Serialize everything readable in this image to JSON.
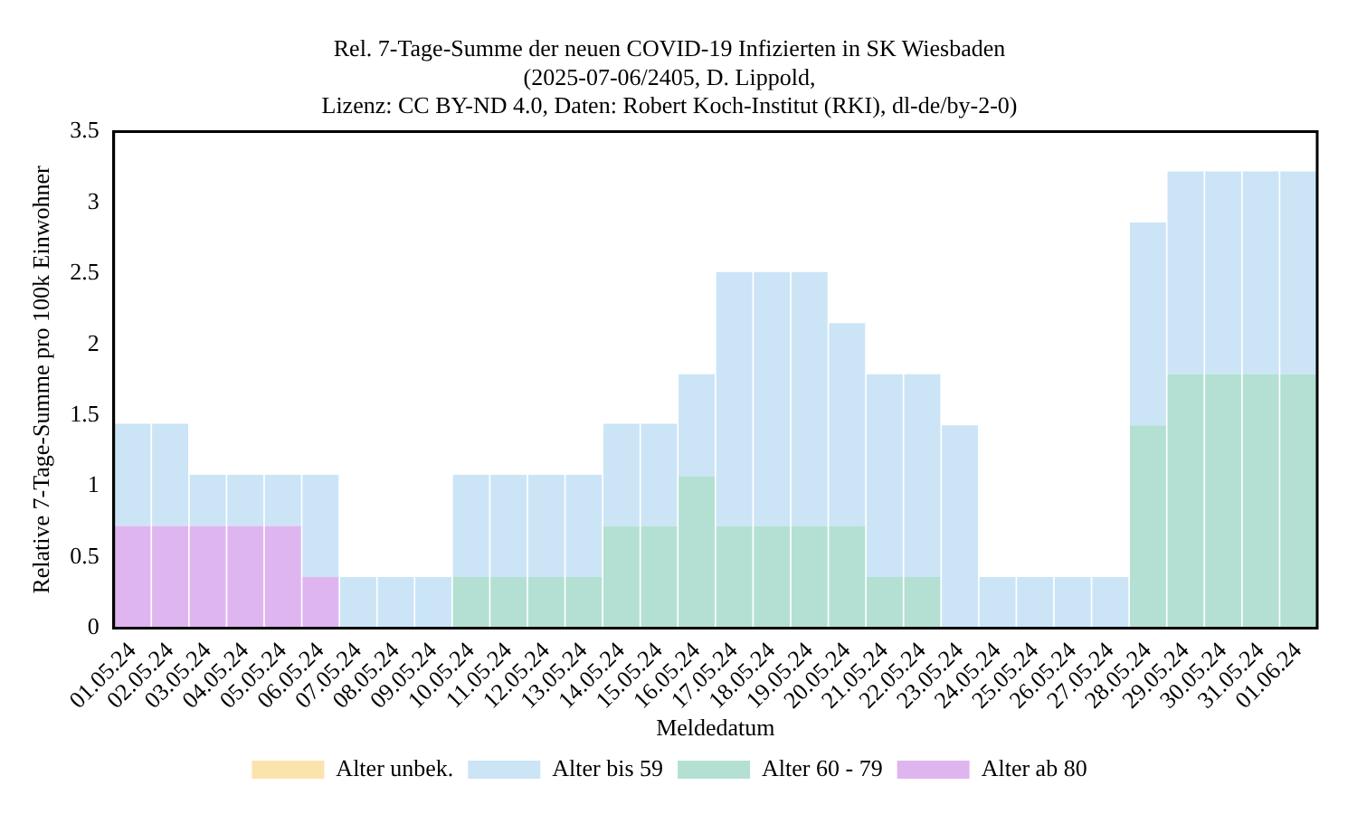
{
  "chart_data": {
    "type": "bar",
    "title": "Rel. 7-Tage-Summe der neuen COVID-19 Infizierten in SK Wiesbaden",
    "subtitle": "(2025-07-06/2405, D. Lippold,\nLizenz: CC BY-ND 4.0, Daten: Robert Koch-Institut (RKI), dl-de/by-2-0)",
    "xlabel": "Meldedatum",
    "ylabel": "Relative 7-Tage-Summe pro 100k Einwohner",
    "categories": [
      "01.05.24",
      "02.05.24",
      "03.05.24",
      "04.05.24",
      "05.05.24",
      "06.05.24",
      "07.05.24",
      "08.05.24",
      "09.05.24",
      "10.05.24",
      "11.05.24",
      "12.05.24",
      "13.05.24",
      "14.05.24",
      "15.05.24",
      "16.05.24",
      "17.05.24",
      "18.05.24",
      "19.05.24",
      "20.05.24",
      "21.05.24",
      "22.05.24",
      "23.05.24",
      "24.05.24",
      "25.05.24",
      "26.05.24",
      "27.05.24",
      "28.05.24",
      "29.05.24",
      "30.05.24",
      "31.05.24",
      "01.06.24"
    ],
    "stacked": true,
    "legend": "bottom",
    "ylim": [
      0,
      3.5
    ],
    "yticks": [
      0,
      0.5,
      1,
      1.5,
      2,
      2.5,
      3,
      3.5
    ],
    "series": [
      {
        "name": "Alter ab 80",
        "color": "#dfb5ef",
        "values": [
          0.72,
          0.72,
          0.72,
          0.72,
          0.72,
          0.36,
          0,
          0,
          0,
          0,
          0,
          0,
          0,
          0,
          0,
          0,
          0,
          0,
          0,
          0,
          0,
          0,
          0,
          0,
          0,
          0,
          0,
          0,
          0,
          0,
          0,
          0
        ]
      },
      {
        "name": "Alter 60 - 79",
        "color": "#b3e0d3",
        "values": [
          0,
          0,
          0,
          0,
          0,
          0,
          0,
          0,
          0,
          0.36,
          0.36,
          0.36,
          0.36,
          0.72,
          0.72,
          1.07,
          0.72,
          0.72,
          0.72,
          0.72,
          0.36,
          0.36,
          0,
          0,
          0,
          0,
          0,
          1.43,
          1.79,
          1.79,
          1.79,
          1.79
        ]
      },
      {
        "name": "Alter bis 59",
        "color": "#cbe5f7",
        "values": [
          0.72,
          0.72,
          0.36,
          0.36,
          0.36,
          0.72,
          0.36,
          0.36,
          0.36,
          0.72,
          0.72,
          0.72,
          0.72,
          0.72,
          0.72,
          0.72,
          1.79,
          1.79,
          1.79,
          1.43,
          1.43,
          1.43,
          1.43,
          0.36,
          0.36,
          0.36,
          0.36,
          1.43,
          1.43,
          1.43,
          1.43,
          1.43
        ]
      },
      {
        "name": "Alter unbek.",
        "color": "#fae3ad",
        "values": [
          null,
          null,
          null,
          null,
          null,
          null,
          null,
          null,
          null,
          null,
          null,
          null,
          null,
          null,
          null,
          null,
          null,
          null,
          null,
          null,
          null,
          null,
          null,
          null,
          null,
          null,
          null,
          null,
          null,
          null,
          null,
          null
        ]
      }
    ]
  }
}
